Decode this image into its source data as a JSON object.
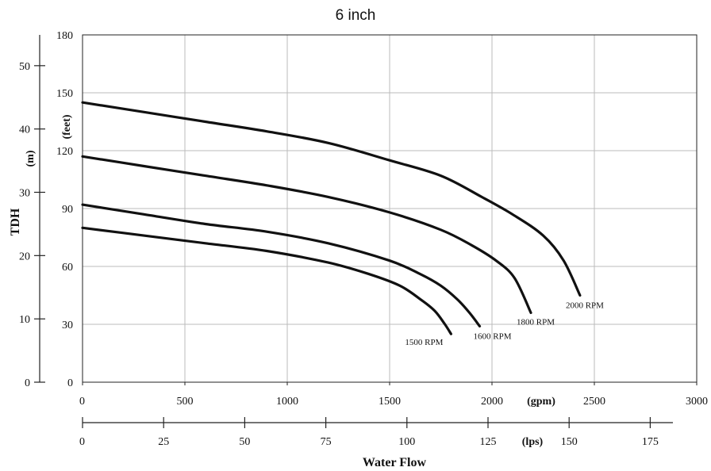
{
  "chart_data": {
    "type": "line",
    "title": "6 inch",
    "xlabel": "Water Flow",
    "ylabel": "TDH",
    "y_units": {
      "feet": "(feet)",
      "meters": "(m)"
    },
    "x_units": {
      "gpm": "(gpm)",
      "lps": "(lps)"
    },
    "xlim_gpm": [
      0,
      3000
    ],
    "ylim_feet": [
      0,
      180
    ],
    "ylim_m": [
      0,
      55
    ],
    "x_ticks_gpm": [
      "0",
      "500",
      "1000",
      "1500",
      "2000",
      "2500",
      "3000"
    ],
    "x_ticks_lps": [
      "0",
      "25",
      "50",
      "75",
      "100",
      "125",
      "150",
      "175"
    ],
    "y_ticks_feet": [
      "0",
      "30",
      "60",
      "90",
      "120",
      "150",
      "180"
    ],
    "y_ticks_m": [
      "0",
      "10",
      "20",
      "30",
      "40",
      "50"
    ],
    "grid": true,
    "series": [
      {
        "name": "1500 RPM",
        "x": [
          0,
          300,
          600,
          900,
          1200,
          1400,
          1550,
          1650,
          1720,
          1770,
          1800
        ],
        "y": [
          80,
          76,
          72,
          68,
          62,
          56,
          50,
          43,
          37,
          30,
          25
        ]
      },
      {
        "name": "1600 RPM",
        "x": [
          0,
          300,
          600,
          900,
          1200,
          1500,
          1650,
          1750,
          1830,
          1890,
          1940
        ],
        "y": [
          92,
          87,
          82,
          78,
          72,
          63,
          56,
          50,
          43,
          36,
          29
        ]
      },
      {
        "name": "1800 RPM",
        "x": [
          0,
          300,
          600,
          900,
          1200,
          1500,
          1750,
          1900,
          2020,
          2110,
          2190
        ],
        "y": [
          117,
          112,
          107,
          102,
          96,
          88,
          79,
          71,
          63,
          54,
          36
        ]
      },
      {
        "name": "2000 RPM",
        "x": [
          0,
          300,
          600,
          900,
          1200,
          1500,
          1750,
          1950,
          2100,
          2250,
          2350,
          2430
        ],
        "y": [
          145,
          140,
          135,
          130,
          124,
          115,
          107,
          96,
          87,
          76,
          63,
          45
        ]
      }
    ]
  }
}
